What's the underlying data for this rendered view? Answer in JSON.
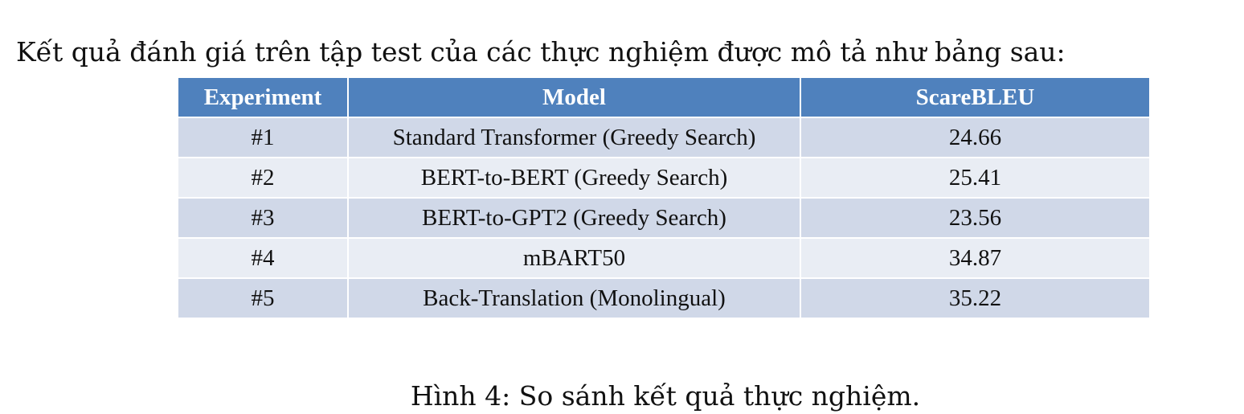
{
  "intro": "Kết quả đánh giá trên tập test của các thực nghiệm được mô tả như bảng sau:",
  "table": {
    "headers": [
      "Experiment",
      "Model",
      "ScareBLEU"
    ],
    "rows": [
      {
        "experiment": "#1",
        "model": "Standard Transformer (Greedy Search)",
        "score": "24.66"
      },
      {
        "experiment": "#2",
        "model": "BERT-to-BERT (Greedy Search)",
        "score": "25.41"
      },
      {
        "experiment": "#3",
        "model": "BERT-to-GPT2 (Greedy Search)",
        "score": "23.56"
      },
      {
        "experiment": "#4",
        "model": "mBART50",
        "score": "34.87"
      },
      {
        "experiment": "#5",
        "model": "Back-Translation (Monolingual)",
        "score": "35.22"
      }
    ]
  },
  "caption": "Hình 4: So sánh kết quả thực nghiệm.",
  "colors": {
    "header_bg": "#4f81bd",
    "row_odd_bg": "#d0d8e8",
    "row_even_bg": "#e9edf4"
  }
}
